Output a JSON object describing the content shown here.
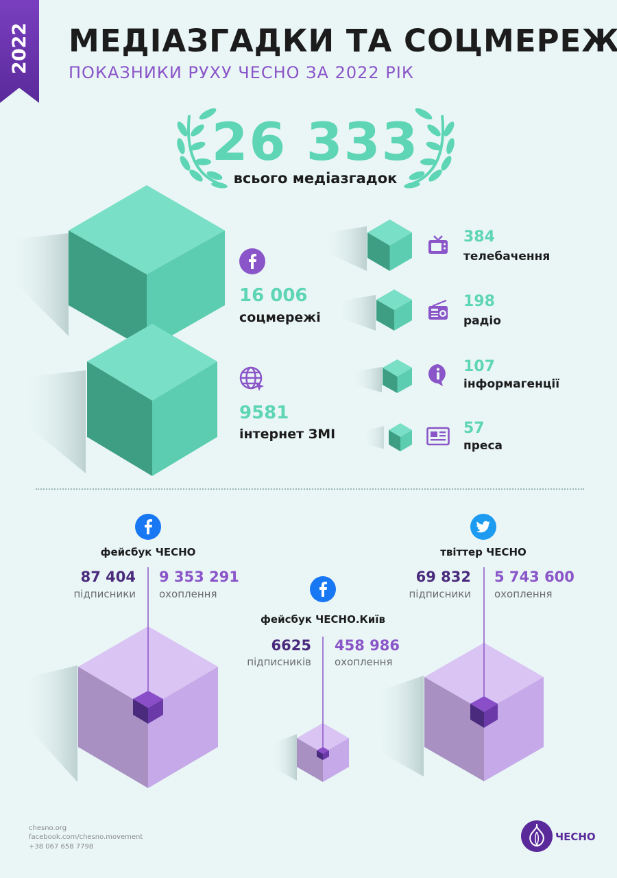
{
  "header": {
    "year": "2022",
    "title": "МЕДІАЗГАДКИ ТА СОЦМЕРЕЖІ",
    "subtitle": "ПОКАЗНИКИ РУХУ ЧЕСНО ЗА 2022 РІК"
  },
  "total": {
    "value": "26 333",
    "label": "всього медіазгадок"
  },
  "media": {
    "social": {
      "value": "16 006",
      "label": "соцмережі",
      "icon": "facebook-icon"
    },
    "internet": {
      "value": "9581",
      "label": "інтернет ЗМІ",
      "icon": "globe-icon"
    },
    "tv": {
      "value": "384",
      "label": "телебачення",
      "icon": "tv-icon"
    },
    "radio": {
      "value": "198",
      "label": "радіо",
      "icon": "radio-icon"
    },
    "agencies": {
      "value": "107",
      "label": "інформагенції",
      "icon": "info-icon"
    },
    "press": {
      "value": "57",
      "label": "преса",
      "icon": "newspaper-icon"
    }
  },
  "social_accounts": {
    "fb_chesno": {
      "title": "фейсбук ЧЕСНО",
      "followers": "87 404",
      "followers_label": "підписники",
      "reach": "9 353 291",
      "reach_label": "охоплення"
    },
    "fb_kyiv": {
      "title": "фейсбук ЧЕСНО.Київ",
      "followers": "6625",
      "followers_label": "підписників",
      "reach": "458 986",
      "reach_label": "охоплення"
    },
    "twitter": {
      "title": "твіттер ЧЕСНО",
      "followers": "69 832",
      "followers_label": "підписники",
      "reach": "5 743 600",
      "reach_label": "охоплення"
    }
  },
  "footer": {
    "site": "chesno.org",
    "facebook": "facebook.com/chesno.movement",
    "phone": "+38 067 658 7798",
    "logo": "ЧЕСНО"
  },
  "colors": {
    "background": "#eaf6f6",
    "teal": "#5ed5b5",
    "purple": "#8a55c8",
    "dark_purple": "#4a2a7c",
    "facebook_blue": "#1877f2",
    "twitter_blue": "#1d9bf0"
  }
}
